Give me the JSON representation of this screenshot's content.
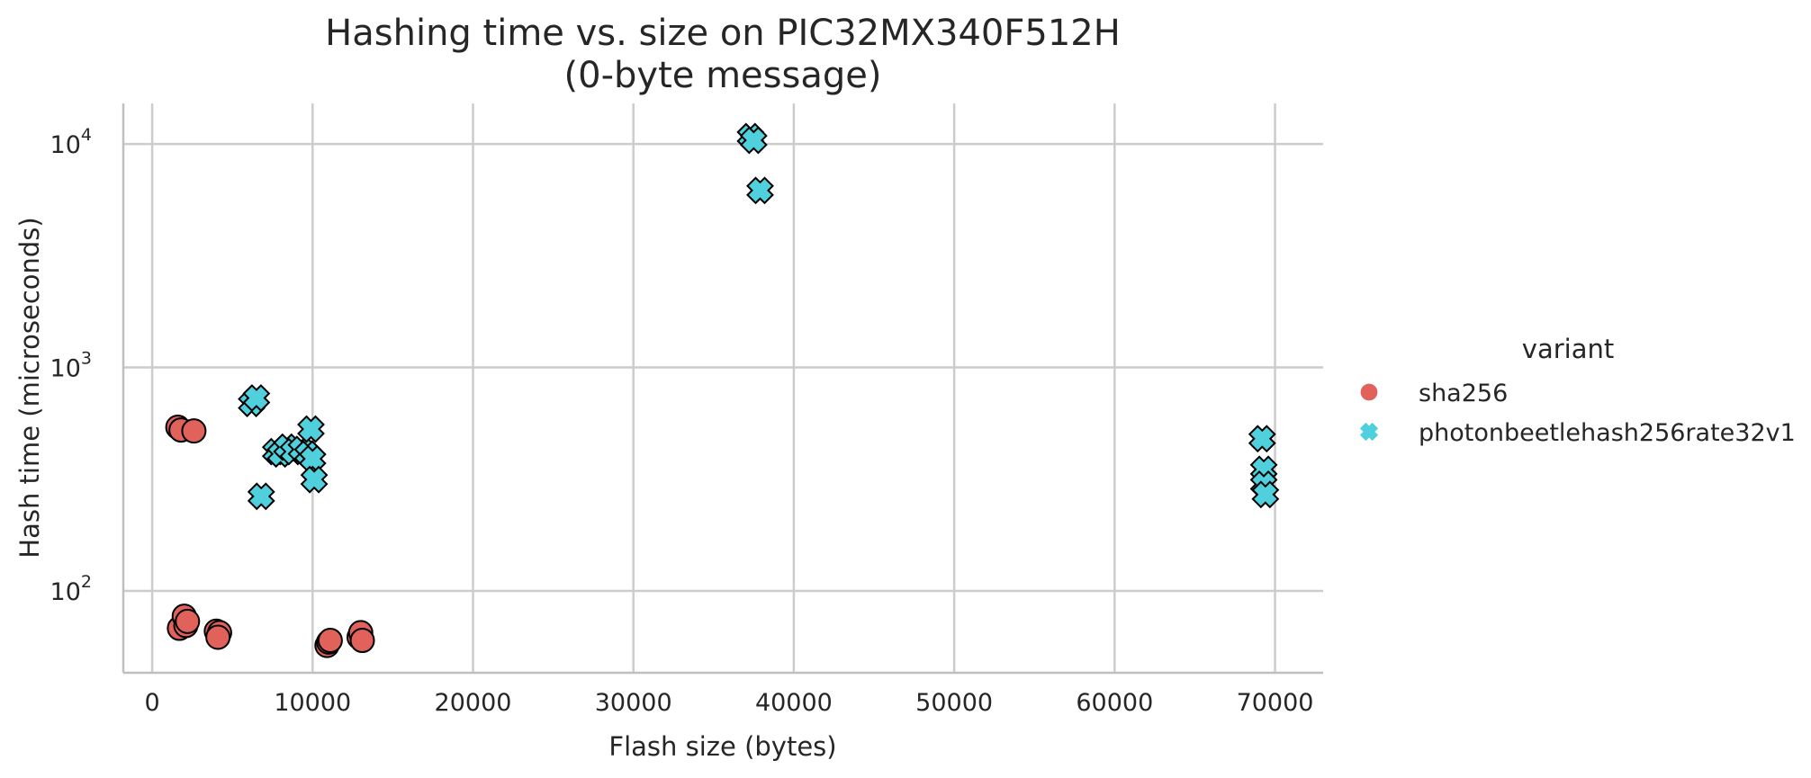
{
  "chart_data": {
    "type": "scatter",
    "title": "Hashing time vs. size on PIC32MX340F512H",
    "subtitle": "(0-byte message)",
    "xlabel": "Flash size (bytes)",
    "ylabel": "Hash time (microseconds)",
    "xlim": [
      -1800,
      73000
    ],
    "ylim": [
      43,
      15200
    ],
    "yscale": "log",
    "grid": true,
    "x_ticks": [
      0,
      10000,
      20000,
      30000,
      40000,
      50000,
      60000,
      70000
    ],
    "x_tick_labels": [
      "0",
      "10000",
      "20000",
      "30000",
      "40000",
      "50000",
      "60000",
      "70000"
    ],
    "y_ticks": [
      100,
      1000,
      10000
    ],
    "y_tick_labels": [
      {
        "base": "10",
        "exp": "2"
      },
      {
        "base": "10",
        "exp": "3"
      },
      {
        "base": "10",
        "exp": "4"
      }
    ],
    "legend": {
      "title": "variant",
      "position": "right"
    },
    "series": [
      {
        "name": "sha256",
        "marker": "circle",
        "color": "#e0625a",
        "points": [
          {
            "x": 1600,
            "y": 540
          },
          {
            "x": 1800,
            "y": 525
          },
          {
            "x": 2600,
            "y": 520
          },
          {
            "x": 1700,
            "y": 68
          },
          {
            "x": 2000,
            "y": 77
          },
          {
            "x": 2100,
            "y": 70
          },
          {
            "x": 2200,
            "y": 73
          },
          {
            "x": 4000,
            "y": 66
          },
          {
            "x": 4200,
            "y": 65
          },
          {
            "x": 4100,
            "y": 62
          },
          {
            "x": 10900,
            "y": 57
          },
          {
            "x": 11000,
            "y": 59
          },
          {
            "x": 11100,
            "y": 60
          },
          {
            "x": 12900,
            "y": 62
          },
          {
            "x": 13000,
            "y": 65
          },
          {
            "x": 13100,
            "y": 60
          }
        ]
      },
      {
        "name": "photonbeetlehash256rate32v1",
        "marker": "x",
        "color": "#4fd0dc",
        "points": [
          {
            "x": 6200,
            "y": 690
          },
          {
            "x": 6500,
            "y": 730
          },
          {
            "x": 6800,
            "y": 265
          },
          {
            "x": 7700,
            "y": 420
          },
          {
            "x": 8000,
            "y": 410
          },
          {
            "x": 8400,
            "y": 440
          },
          {
            "x": 8800,
            "y": 420
          },
          {
            "x": 9300,
            "y": 430
          },
          {
            "x": 9700,
            "y": 410
          },
          {
            "x": 9900,
            "y": 530
          },
          {
            "x": 10000,
            "y": 390
          },
          {
            "x": 10100,
            "y": 315
          },
          {
            "x": 37300,
            "y": 10800
          },
          {
            "x": 37500,
            "y": 10400
          },
          {
            "x": 37900,
            "y": 6200
          },
          {
            "x": 69200,
            "y": 480
          },
          {
            "x": 69300,
            "y": 350
          },
          {
            "x": 69300,
            "y": 300
          },
          {
            "x": 69400,
            "y": 270
          }
        ]
      }
    ]
  }
}
